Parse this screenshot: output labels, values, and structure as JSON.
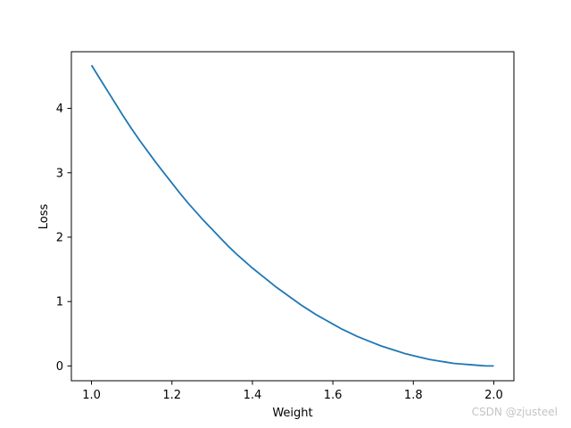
{
  "chart_data": {
    "type": "line",
    "title": "",
    "xlabel": "Weight",
    "ylabel": "Loss",
    "xlim": [
      0.95,
      2.05
    ],
    "ylim": [
      -0.23,
      4.88
    ],
    "xticks": [
      1.0,
      1.2,
      1.4,
      1.6,
      1.8,
      2.0
    ],
    "xtick_labels": [
      "1.0",
      "1.2",
      "1.4",
      "1.6",
      "1.8",
      "2.0"
    ],
    "yticks": [
      0,
      1,
      2,
      3,
      4
    ],
    "ytick_labels": [
      "0",
      "1",
      "2",
      "3",
      "4"
    ],
    "grid": false,
    "legend": "none",
    "series": [
      {
        "color": "#1f77b4",
        "x": [
          1.0,
          1.02,
          1.04,
          1.06,
          1.08,
          1.1,
          1.12,
          1.14,
          1.16,
          1.18,
          1.2,
          1.22,
          1.24,
          1.26,
          1.28,
          1.3,
          1.32,
          1.34,
          1.36,
          1.38,
          1.4,
          1.42,
          1.44,
          1.46,
          1.48,
          1.5,
          1.52,
          1.54,
          1.56,
          1.58,
          1.6,
          1.62,
          1.64,
          1.66,
          1.68,
          1.7,
          1.72,
          1.74,
          1.76,
          1.78,
          1.8,
          1.82,
          1.84,
          1.86,
          1.88,
          1.9,
          1.92,
          1.94,
          1.96,
          1.98,
          2.0
        ],
        "values": [
          4.67,
          4.47,
          4.27,
          4.07,
          3.87,
          3.68,
          3.5,
          3.33,
          3.16,
          3.0,
          2.84,
          2.68,
          2.53,
          2.39,
          2.25,
          2.12,
          1.99,
          1.86,
          1.74,
          1.63,
          1.52,
          1.42,
          1.32,
          1.22,
          1.13,
          1.04,
          0.95,
          0.87,
          0.79,
          0.72,
          0.65,
          0.58,
          0.52,
          0.46,
          0.41,
          0.36,
          0.31,
          0.27,
          0.23,
          0.19,
          0.16,
          0.13,
          0.1,
          0.08,
          0.06,
          0.04,
          0.03,
          0.02,
          0.01,
          0.0,
          0.0
        ]
      }
    ]
  },
  "watermark": "CSDN @zjusteel"
}
